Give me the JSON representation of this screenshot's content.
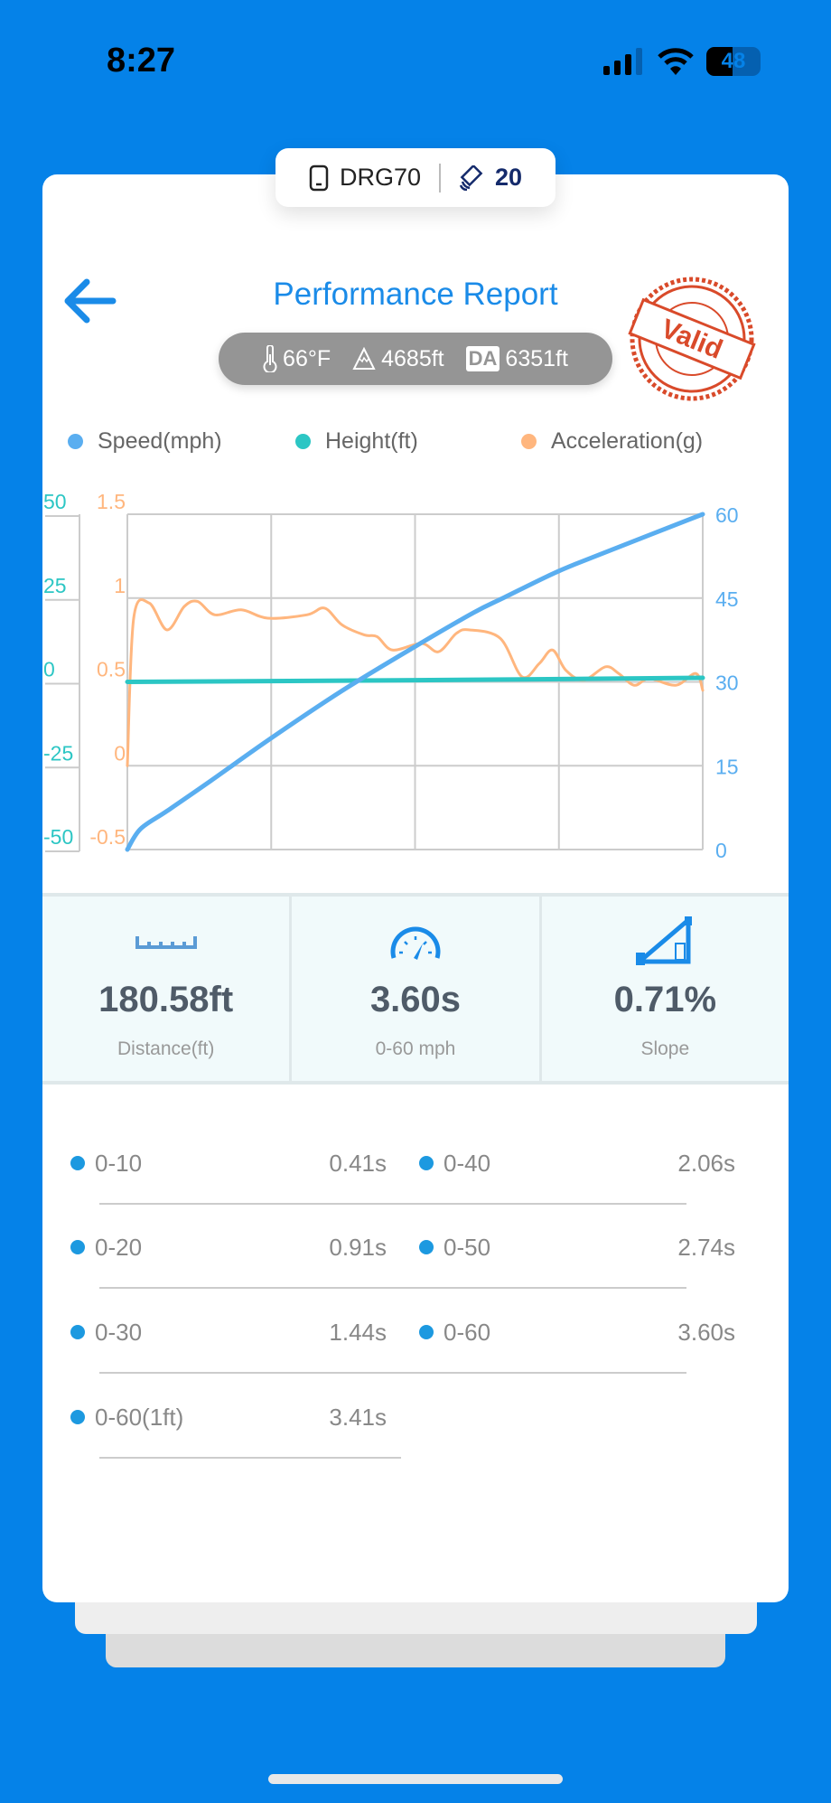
{
  "status_bar": {
    "time": "8:27",
    "battery": "48"
  },
  "device": {
    "name": "DRG70",
    "satellites": "20"
  },
  "header": {
    "title": "Performance Report",
    "stamp_text": "Valid"
  },
  "environment": {
    "temperature": "66°F",
    "altitude": "4685ft",
    "da_label": "DA",
    "density_altitude": "6351ft"
  },
  "colors": {
    "speed": "#5aaef0",
    "height": "#2cc6c4",
    "acceleration": "#ffb67e",
    "accent": "#1a8be8",
    "background": "#0582e8"
  },
  "chart_data": {
    "type": "line",
    "legend": [
      "Speed(mph)",
      "Height(ft)",
      "Acceleration(g)"
    ],
    "legend_position": "top",
    "grid": true,
    "axes": {
      "height": {
        "side": "left-outer",
        "ticks": [
          "50",
          "25",
          "0",
          "-25",
          "-50"
        ],
        "range": [
          -50,
          50
        ]
      },
      "acceleration": {
        "side": "left-inner",
        "ticks": [
          "1.5",
          "1",
          "0.5",
          "0",
          "-0.5"
        ],
        "range": [
          -0.5,
          1.5
        ]
      },
      "speed": {
        "side": "right",
        "ticks": [
          "60",
          "45",
          "30",
          "15",
          "0"
        ],
        "range": [
          0,
          60
        ]
      }
    },
    "series": [
      {
        "name": "Speed(mph)",
        "axis": "speed",
        "color": "#5aaef0",
        "points": [
          [
            0,
            0
          ],
          [
            0.023,
            3.7
          ],
          [
            0.069,
            6.9
          ],
          [
            0.145,
            12.3
          ],
          [
            0.248,
            19.8
          ],
          [
            0.373,
            28.4
          ],
          [
            0.498,
            36.2
          ],
          [
            0.602,
            42.4
          ],
          [
            0.655,
            45.1
          ],
          [
            0.747,
            49.7
          ],
          [
            0.831,
            53.2
          ],
          [
            1,
            60
          ]
        ]
      },
      {
        "name": "Height(ft)",
        "axis": "height",
        "color": "#2cc6c4",
        "points": [
          [
            0,
            0
          ],
          [
            0.5,
            0.5
          ],
          [
            1,
            1.2
          ]
        ]
      },
      {
        "name": "Acceleration(g)",
        "axis": "acceleration",
        "color": "#ffb67e",
        "points": [
          [
            0,
            0
          ],
          [
            0.011,
            0.88
          ],
          [
            0.038,
            0.97
          ],
          [
            0.069,
            0.81
          ],
          [
            0.099,
            0.95
          ],
          [
            0.122,
            0.98
          ],
          [
            0.152,
            0.9
          ],
          [
            0.198,
            0.93
          ],
          [
            0.244,
            0.88
          ],
          [
            0.312,
            0.9
          ],
          [
            0.343,
            0.94
          ],
          [
            0.373,
            0.84
          ],
          [
            0.412,
            0.78
          ],
          [
            0.434,
            0.77
          ],
          [
            0.461,
            0.69
          ],
          [
            0.511,
            0.73
          ],
          [
            0.541,
            0.68
          ],
          [
            0.572,
            0.79
          ],
          [
            0.595,
            0.81
          ],
          [
            0.648,
            0.76
          ],
          [
            0.686,
            0.53
          ],
          [
            0.716,
            0.61
          ],
          [
            0.739,
            0.69
          ],
          [
            0.762,
            0.57
          ],
          [
            0.793,
            0.51
          ],
          [
            0.831,
            0.59
          ],
          [
            0.854,
            0.55
          ],
          [
            0.881,
            0.48
          ],
          [
            0.907,
            0.52
          ],
          [
            0.953,
            0.48
          ],
          [
            0.988,
            0.55
          ],
          [
            1,
            0.45
          ]
        ]
      }
    ]
  },
  "stats": [
    {
      "value": "180.58ft",
      "label": "Distance(ft)",
      "icon": "ruler-icon"
    },
    {
      "value": "3.60s",
      "label": "0-60 mph",
      "icon": "speedometer-icon"
    },
    {
      "value": "0.71%",
      "label": "Slope",
      "icon": "slope-icon"
    }
  ],
  "splits": [
    {
      "label": "0-10",
      "value": "0.41s"
    },
    {
      "label": "0-40",
      "value": "2.06s"
    },
    {
      "label": "0-20",
      "value": "0.91s"
    },
    {
      "label": "0-50",
      "value": "2.74s"
    },
    {
      "label": "0-30",
      "value": "1.44s"
    },
    {
      "label": "0-60",
      "value": "3.60s"
    },
    {
      "label": "0-60(1ft)",
      "value": "3.41s"
    }
  ]
}
